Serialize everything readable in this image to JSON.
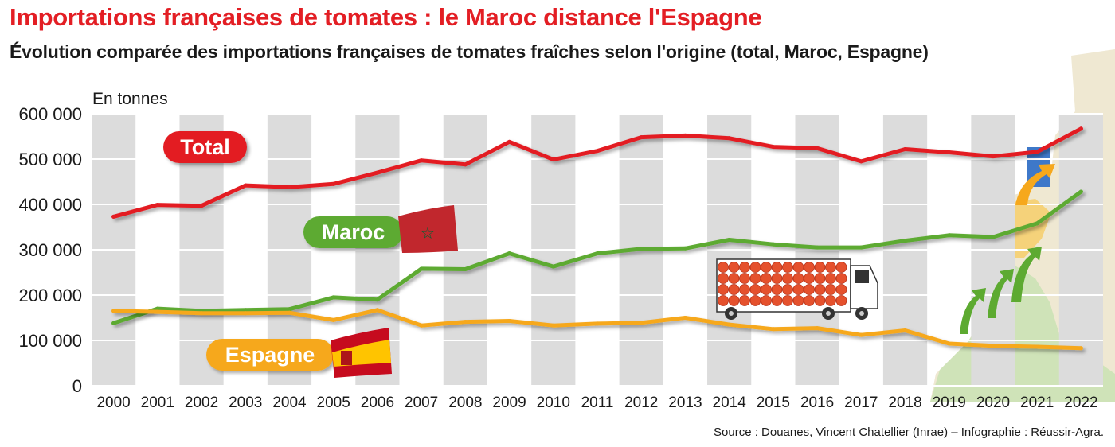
{
  "title": "Importations françaises de tomates : le Maroc distance l'Espagne",
  "subtitle": "Évolution comparée des importations françaises de tomates fraîches selon l'origine (total, Maroc, Espagne)",
  "source": "Source : Douanes, Vincent Chatellier (Inrae) – Infographie : Réussir-Agra.",
  "chart_data": {
    "type": "line",
    "ylabel": "En tonnes",
    "ylim": [
      0,
      600000
    ],
    "yticks": [
      "0",
      "100 000",
      "200 000",
      "300 000",
      "400 000",
      "500 000",
      "600 000"
    ],
    "x": [
      "2000",
      "2001",
      "2002",
      "2003",
      "2004",
      "2005",
      "2006",
      "2007",
      "2008",
      "2009",
      "2010",
      "2011",
      "2012",
      "2013",
      "2014",
      "2015",
      "2016",
      "2017",
      "2018",
      "2019",
      "2020",
      "2021",
      "2022"
    ],
    "grid": "alternating vertical bands",
    "series": [
      {
        "name": "Total",
        "color": "#e31e24",
        "values": [
          373000,
          399000,
          397000,
          442000,
          438000,
          445000,
          470000,
          497000,
          488000,
          538000,
          499000,
          518000,
          548000,
          552000,
          546000,
          527000,
          524000,
          495000,
          522000,
          515000,
          506000,
          516000,
          567000
        ]
      },
      {
        "name": "Maroc",
        "color": "#5daa31",
        "values": [
          138000,
          170000,
          165000,
          167000,
          169000,
          195000,
          190000,
          258000,
          257000,
          292000,
          263000,
          292000,
          302000,
          303000,
          322000,
          312000,
          305000,
          305000,
          320000,
          332000,
          328000,
          358000,
          428000
        ]
      },
      {
        "name": "Espagne",
        "color": "#f6a81c",
        "values": [
          165000,
          163000,
          160000,
          160000,
          161000,
          145000,
          167000,
          133000,
          141000,
          143000,
          133000,
          137000,
          139000,
          150000,
          135000,
          125000,
          127000,
          112000,
          122000,
          93000,
          88000,
          86000,
          83000
        ]
      }
    ]
  }
}
